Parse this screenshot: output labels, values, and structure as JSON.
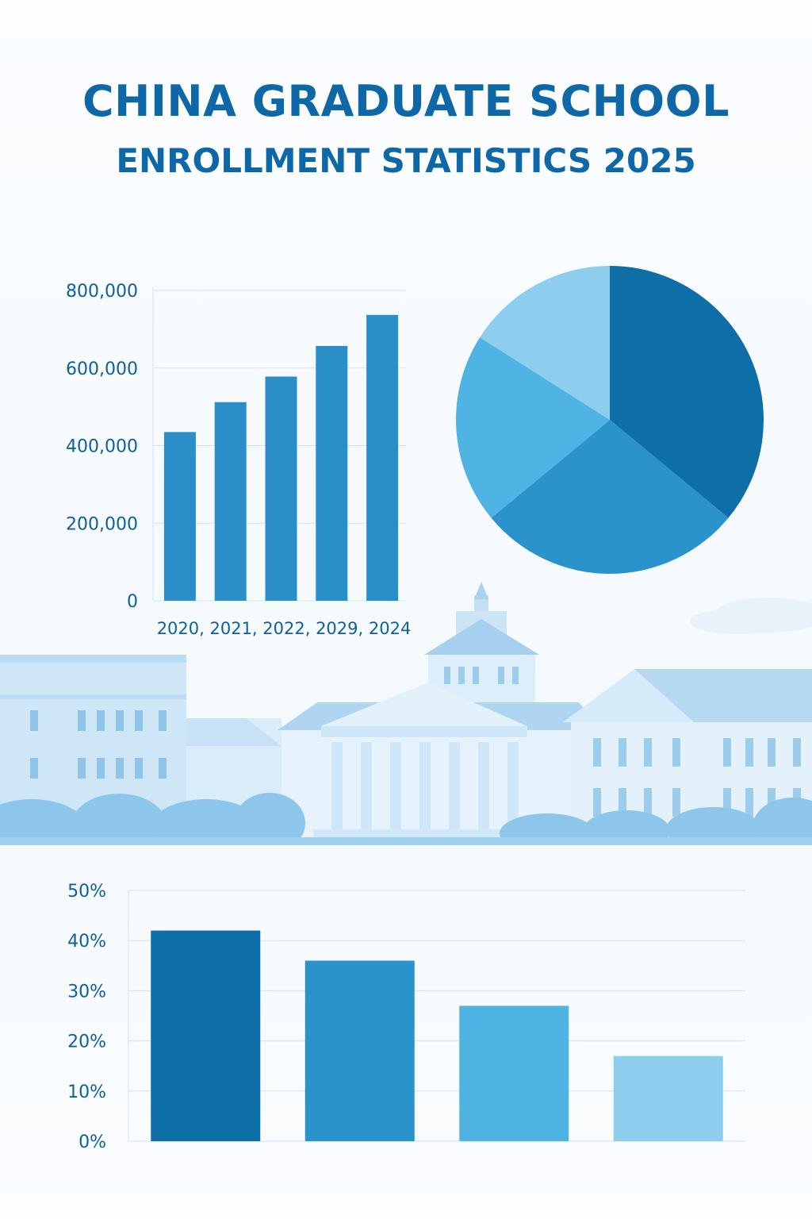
{
  "header": {
    "title_line_1": "CHINA GRADUATE SCHOOL",
    "title_line_2": "ENROLLMENT STATISTICS 2025"
  },
  "colors": {
    "title": "#0e68a8",
    "dark_blue": "#0e6ea8",
    "mid_blue": "#2a93cb",
    "light_blue": "#4fb4e4",
    "pale_blue": "#8dcdee",
    "building": "#d4e9f8"
  },
  "chart_data": [
    {
      "type": "bar",
      "categories": [
        "2020",
        "2021",
        "2022",
        "2029",
        "2024"
      ],
      "category_axis_text": "2020, 2021, 2022, 2029, 2024",
      "values": [
        435000,
        512000,
        578000,
        657000,
        737000
      ],
      "ylim": [
        0,
        800000
      ],
      "yticks": [
        0,
        200000,
        400000,
        600000,
        800000
      ],
      "ytick_labels": [
        "0",
        "200,000",
        "400,000",
        "600,000",
        "800,000"
      ],
      "grid": true,
      "bar_color": "#2a8fc9"
    },
    {
      "type": "pie",
      "values": [
        36,
        28,
        20,
        16
      ],
      "colors": [
        "#0e6ea8",
        "#2a93cb",
        "#4fb4e4",
        "#8dcdee"
      ],
      "start_angle_deg": 0
    },
    {
      "type": "bar",
      "values": [
        42,
        36,
        27,
        17
      ],
      "ylim": [
        0,
        50
      ],
      "yticks": [
        0,
        10,
        20,
        30,
        40,
        50
      ],
      "ytick_labels": [
        "0%",
        "10%",
        "20%",
        "30%",
        "40%",
        "50%"
      ],
      "grid": true,
      "colors": [
        "#0e6ea8",
        "#2a93cb",
        "#4fb4e4",
        "#8dcdee"
      ]
    }
  ]
}
